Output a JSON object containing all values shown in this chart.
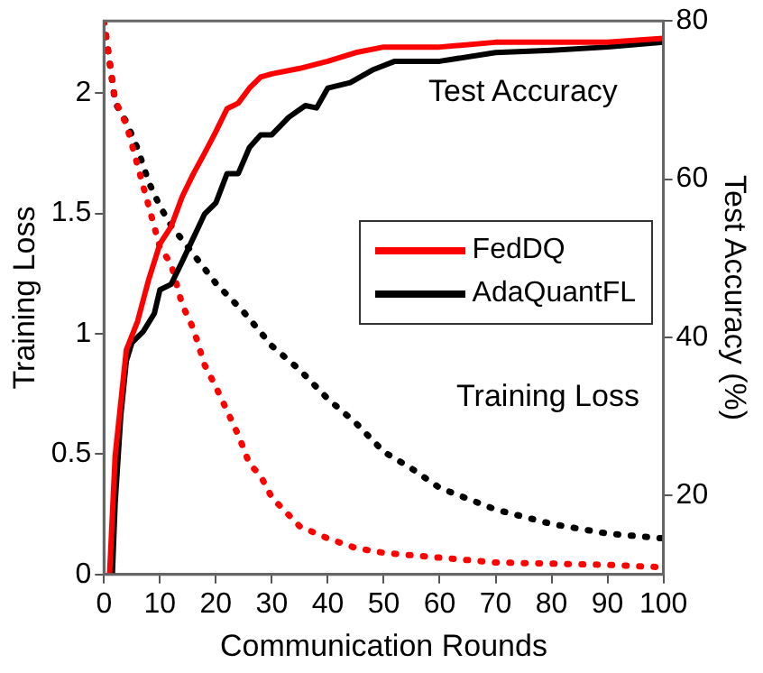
{
  "chart_data": {
    "type": "line",
    "xlabel": "Communication Rounds",
    "ylabel": "Training Loss",
    "y2label": "Test Accuracy (%)",
    "xlim": [
      0,
      100
    ],
    "xticks": [
      0,
      10,
      20,
      30,
      40,
      50,
      60,
      70,
      80,
      90,
      100
    ],
    "ylim": [
      0,
      2.3
    ],
    "yticks": [
      0,
      0.5,
      1,
      1.5,
      2
    ],
    "y2lim": [
      10,
      80
    ],
    "y2ticks": [
      20,
      40,
      60,
      80
    ],
    "grid": false,
    "legend": "right",
    "marker": "none",
    "annotations": [
      "Test Accuracy",
      "Training Loss"
    ],
    "series": [
      {
        "name": "FedDQ",
        "color": "#ff0000",
        "axis": "y2",
        "line_style": "solid",
        "x": [
          1,
          2,
          4,
          6,
          8,
          10,
          12,
          14,
          16,
          18,
          20,
          22,
          24,
          26,
          28,
          30,
          35,
          40,
          45,
          50,
          60,
          70,
          80,
          90,
          100
        ],
        "values": [
          10,
          25,
          38.4,
          42,
          47.3,
          51.8,
          54,
          57.8,
          60.7,
          63.3,
          66,
          68.9,
          69.6,
          71.5,
          72.9,
          73.3,
          74,
          74.9,
          76,
          76.7,
          76.7,
          77.3,
          77.3,
          77.3,
          77.8
        ]
      },
      {
        "name": "AdaQuantFL",
        "color": "#000000",
        "axis": "y2",
        "line_style": "solid",
        "x": [
          1.5,
          2,
          3,
          4,
          5,
          7,
          9,
          10,
          12,
          14,
          16,
          18,
          20,
          22,
          24,
          26,
          28,
          30,
          33,
          36,
          38,
          40,
          44,
          48,
          52,
          60,
          70,
          80,
          90,
          100
        ],
        "values": [
          10,
          19,
          30,
          37,
          39.3,
          40.7,
          43,
          46,
          46.7,
          49.6,
          52.6,
          55.6,
          57,
          60.7,
          60.7,
          64,
          65.6,
          65.6,
          67.8,
          69.3,
          69,
          71.5,
          72.2,
          73.8,
          74.9,
          74.9,
          76,
          76.3,
          76.7,
          77.3
        ]
      },
      {
        "color": "#ff0000",
        "axis": "y",
        "line_style": "dotted",
        "x": [
          0,
          2,
          4,
          6,
          8,
          10,
          12,
          14,
          16,
          18,
          20,
          22,
          24,
          26,
          28,
          30,
          35,
          40,
          45,
          50,
          60,
          70,
          80,
          90,
          100
        ],
        "values": [
          2.3,
          1.97,
          1.87,
          1.7,
          1.53,
          1.36,
          1.29,
          1.12,
          1.02,
          0.87,
          0.78,
          0.68,
          0.58,
          0.46,
          0.41,
          0.32,
          0.2,
          0.15,
          0.11,
          0.09,
          0.07,
          0.05,
          0.045,
          0.04,
          0.03
        ]
      },
      {
        "color": "#000000",
        "axis": "y",
        "line_style": "dotted",
        "x": [
          0,
          2,
          4,
          6,
          8,
          10,
          12,
          15,
          20,
          25,
          30,
          35,
          40,
          45,
          50,
          55,
          60,
          70,
          80,
          90,
          100
        ],
        "values": [
          2.3,
          1.96,
          1.88,
          1.77,
          1.63,
          1.53,
          1.45,
          1.36,
          1.21,
          1.09,
          0.95,
          0.85,
          0.73,
          0.63,
          0.51,
          0.44,
          0.36,
          0.27,
          0.21,
          0.17,
          0.15
        ]
      }
    ]
  }
}
